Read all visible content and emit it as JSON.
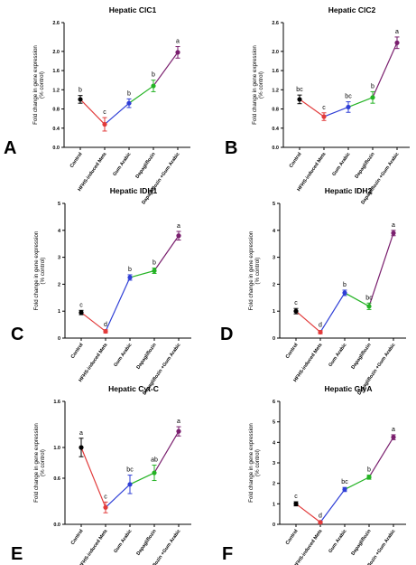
{
  "chart_data": [
    {
      "type": "line",
      "panel_label": "A",
      "title": "Hepatic ClC1",
      "ylabel": "Fold change in gene expression (% control)",
      "ylim": [
        0,
        2.6
      ],
      "yticks": [
        "0.0",
        "0.4",
        "0.8",
        "1.2",
        "1.6",
        "2.0",
        "2.6"
      ],
      "categories": [
        "Control",
        "HFHS-induced Mets",
        "Gum Arabic",
        "Dapagliflozin",
        "Dapagliflozin +Gum Arabic"
      ],
      "values": [
        1.0,
        0.48,
        0.92,
        1.28,
        1.98
      ],
      "errors": [
        0.08,
        0.14,
        0.09,
        0.12,
        0.12
      ],
      "significance": [
        "b",
        "c",
        "b",
        "b",
        "a"
      ],
      "colors": [
        "#000000",
        "#e23b3b",
        "#2f3fd6",
        "#24b324",
        "#7a1f6e"
      ]
    },
    {
      "type": "line",
      "panel_label": "B",
      "title": "Hepatic ClC2",
      "ylabel": "Fold change in gene expression (% control)",
      "ylim": [
        0,
        2.6
      ],
      "yticks": [
        "0.0",
        "0.4",
        "0.8",
        "1.2",
        "1.6",
        "2.0",
        "2.6"
      ],
      "categories": [
        "Control",
        "HFHS-induced Mets",
        "Gum Arabic",
        "Dapagliflozin",
        "Dapagliflozin +Gum Arabic"
      ],
      "values": [
        1.0,
        0.64,
        0.84,
        1.04,
        2.18
      ],
      "errors": [
        0.09,
        0.08,
        0.11,
        0.12,
        0.12
      ],
      "significance": [
        "bc",
        "c",
        "bc",
        "b",
        "a"
      ],
      "colors": [
        "#000000",
        "#e23b3b",
        "#2f3fd6",
        "#24b324",
        "#7a1f6e"
      ]
    },
    {
      "type": "line",
      "panel_label": "C",
      "title": "Hepatic IDH1",
      "ylabel": "Fold change in gene expression (% control)",
      "ylim": [
        0,
        5
      ],
      "yticks": [
        "0",
        "1",
        "2",
        "3",
        "4",
        "5"
      ],
      "categories": [
        "Control",
        "HFHS-induced Mets",
        "Gum Arabic",
        "Dapagliflozin",
        "Dapagliflozin +Gum Arabic"
      ],
      "values": [
        0.95,
        0.25,
        2.25,
        2.5,
        3.8
      ],
      "errors": [
        0.08,
        0.06,
        0.1,
        0.1,
        0.16
      ],
      "significance": [
        "c",
        "d",
        "b",
        "b",
        "a"
      ],
      "colors": [
        "#000000",
        "#e23b3b",
        "#2f3fd6",
        "#24b324",
        "#7a1f6e"
      ]
    },
    {
      "type": "line",
      "panel_label": "D",
      "title": "Hepatic IDH2",
      "ylabel": "Fold change in gene expression (% control)",
      "ylim": [
        0,
        5
      ],
      "yticks": [
        "0",
        "1",
        "2",
        "3",
        "4",
        "5"
      ],
      "categories": [
        "Control",
        "HFHS-induced Mets",
        "Gum Arabic",
        "Dapagliflozin",
        "Dapagliflozin +Gum Arabic"
      ],
      "values": [
        1.0,
        0.22,
        1.68,
        1.18,
        3.9
      ],
      "errors": [
        0.1,
        0.06,
        0.1,
        0.12,
        0.1
      ],
      "significance": [
        "c",
        "d",
        "b",
        "bc",
        "a"
      ],
      "colors": [
        "#000000",
        "#e23b3b",
        "#2f3fd6",
        "#24b324",
        "#7a1f6e"
      ]
    },
    {
      "type": "line",
      "panel_label": "E",
      "title": "Hepatic Cyt-C",
      "ylabel": "Fold change in gene expression (% control)",
      "ylim": [
        0,
        1.6
      ],
      "yticks": [
        "0.0",
        "0.6",
        "1.0",
        "1.6"
      ],
      "categories": [
        "Control",
        "HFHS-induced Mets",
        "Gum Arabic",
        "Dapagliflozin",
        "Dapagliflozin +Gum Arabic"
      ],
      "values": [
        1.0,
        0.22,
        0.52,
        0.67,
        1.21
      ],
      "errors": [
        0.12,
        0.07,
        0.12,
        0.1,
        0.06
      ],
      "significance": [
        "a",
        "c",
        "bc",
        "ab",
        "a"
      ],
      "colors": [
        "#000000",
        "#e23b3b",
        "#2f3fd6",
        "#24b324",
        "#7a1f6e"
      ]
    },
    {
      "type": "line",
      "panel_label": "F",
      "title": "Hepatic GlyA",
      "ylabel": "Fold change in gene expression (% control)",
      "ylim": [
        0,
        6
      ],
      "yticks": [
        "0",
        "1",
        "2",
        "3",
        "4",
        "5",
        "6"
      ],
      "categories": [
        "Control",
        "HFHS-induced Mets",
        "Gum Arabic",
        "Dapagliflozin",
        "Dapagliflozin +Gum Arabic"
      ],
      "values": [
        1.0,
        0.1,
        1.7,
        2.3,
        4.25
      ],
      "errors": [
        0.1,
        0.05,
        0.1,
        0.1,
        0.12
      ],
      "significance": [
        "c",
        "d",
        "bc",
        "b",
        "a"
      ],
      "colors": [
        "#000000",
        "#e23b3b",
        "#2f3fd6",
        "#24b324",
        "#7a1f6e"
      ]
    }
  ]
}
